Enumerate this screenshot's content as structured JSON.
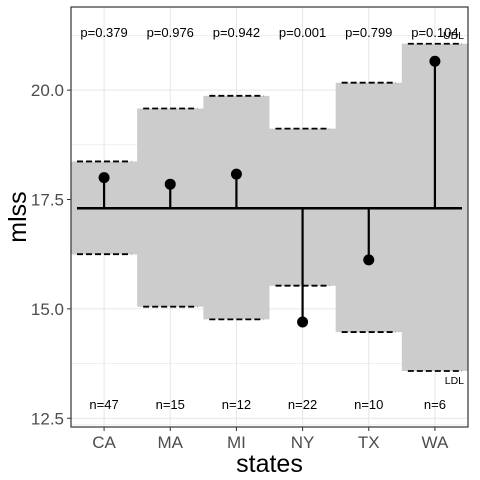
{
  "chart_data": {
    "type": "scatter",
    "xlabel": "states",
    "ylabel": "mlss",
    "ylim": [
      12.3,
      21.9
    ],
    "yticks": [
      "12.5",
      "15.0",
      "17.5",
      "20.0"
    ],
    "categories": [
      "CA",
      "MA",
      "MI",
      "NY",
      "TX",
      "WA"
    ],
    "center_line": 17.3,
    "values": [
      18.0,
      17.85,
      18.08,
      14.7,
      16.12,
      20.66
    ],
    "upper_limits": [
      18.37,
      19.58,
      19.87,
      19.12,
      20.17,
      21.06
    ],
    "lower_limits": [
      16.25,
      15.05,
      14.76,
      15.53,
      14.47,
      13.58
    ],
    "p_values": [
      "p=0.379",
      "p=0.976",
      "p=0.942",
      "p=0.001",
      "p=0.799",
      "p=0.104"
    ],
    "n_labels": [
      "n=47",
      "n=15",
      "n=12",
      "n=22",
      "n=10",
      "n=6"
    ],
    "limit_labels": {
      "upper": "UDL",
      "lower": "LDL"
    },
    "colors": {
      "band": "#cccccc",
      "grid": "#e6e6e6",
      "ink": "#000000",
      "panel_border": "#333333"
    },
    "grid": true,
    "legend": "none"
  }
}
